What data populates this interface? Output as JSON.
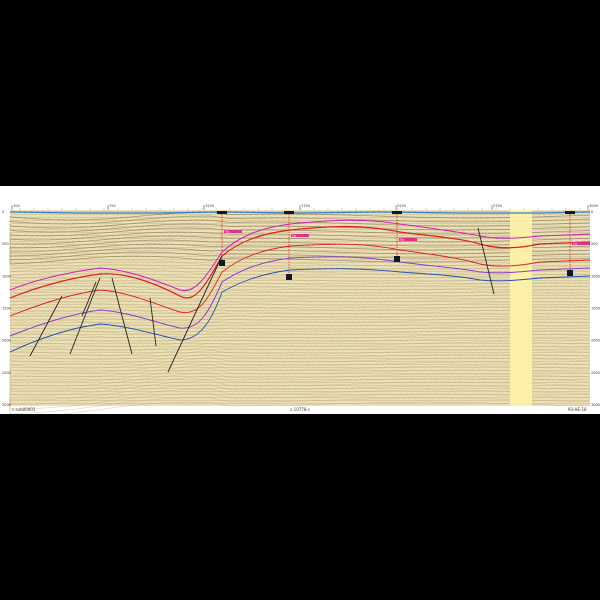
{
  "section": {
    "top_tick_labels": [
      "100",
      "750",
      "1250",
      "1750",
      "2250",
      "2750",
      "3000"
    ],
    "depth_labels": [
      "0",
      "500",
      "1000",
      "1500",
      "2000",
      "2500",
      "3000"
    ],
    "footer_left": "c.sub00001",
    "footer_center": "c-10778-c",
    "footer_right": "93-HE-18",
    "well_tops": [
      "Top",
      "Top",
      "Top",
      "Top",
      "Top",
      "Top"
    ]
  },
  "colors": {
    "background": "#000000",
    "seismic_base": "#eee2b8",
    "highlight_band": "#fff0a8",
    "seafloor": "#2f7fd0",
    "horizon_red": "#e02020",
    "horizon_magenta": "#d020c0",
    "horizon_purple": "#8a40d0",
    "horizon_blue": "#2050b0",
    "fault": "#222222",
    "well_marker": "#101828",
    "well_pink": "#e0208a"
  },
  "icons": [
    "well-icon",
    "fault-line-icon"
  ]
}
